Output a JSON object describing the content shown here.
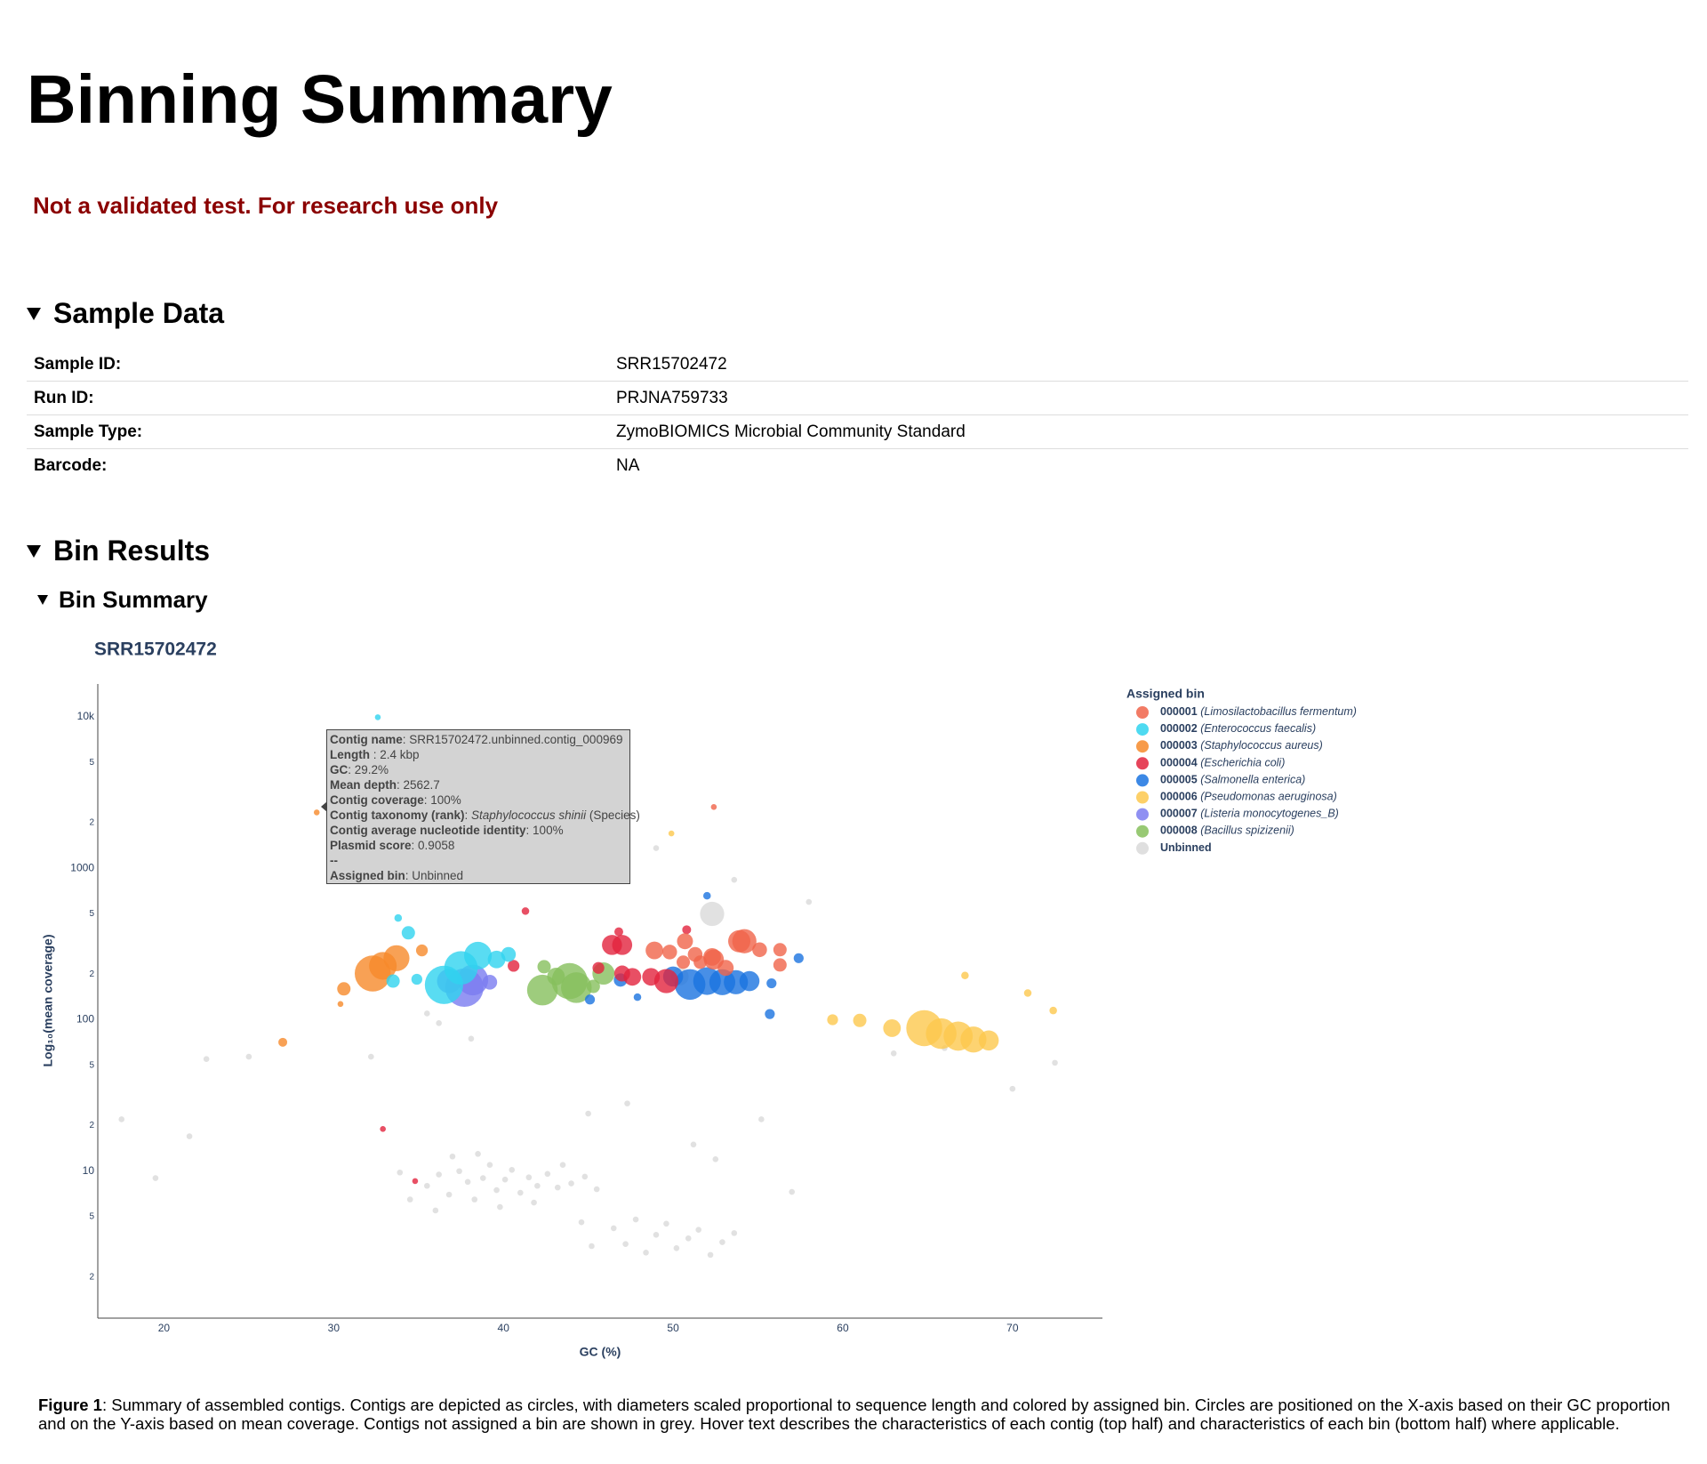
{
  "header": {
    "title": "Binning Summary",
    "notice": "Not a validated test. For research use only"
  },
  "sample_data": {
    "title": "Sample Data",
    "rows": [
      [
        "Sample ID:",
        "SRR15702472"
      ],
      [
        "Run ID:",
        "PRJNA759733"
      ],
      [
        "Sample Type:",
        "ZymoBIOMICS Microbial Community Standard"
      ],
      [
        "Barcode:",
        "NA"
      ]
    ]
  },
  "bin_results": {
    "title": "Bin Results",
    "bin_summary": {
      "title": "Bin Summary"
    }
  },
  "chart_data": {
    "type": "scatter",
    "title": "SRR15702472",
    "x_label": "GC (%)",
    "y_label": "Log₁₀(mean coverage)",
    "legend_title": "Assigned bin",
    "legend": "right",
    "log_y": true,
    "xlim": [
      16.1,
      75.3
    ],
    "xticks": [
      20,
      30,
      40,
      50,
      60,
      70
    ],
    "ylim": [
      1.07,
      16500
    ],
    "yticks": [
      2,
      5,
      10,
      {
        "value": 20,
        "label": "2"
      },
      {
        "value": 50,
        "label": "5"
      },
      100,
      {
        "value": 200,
        "label": "2"
      },
      {
        "value": 500,
        "label": "5"
      },
      1000,
      {
        "value": 2000,
        "label": "2"
      },
      {
        "value": 5000,
        "label": "5"
      },
      {
        "value": 10000,
        "label": "10k"
      }
    ],
    "series": [
      {
        "name": "000001",
        "taxon": "(Limosilactobacillus fermentum)",
        "color": "#f0644a",
        "x": [
          48.9,
          49.8,
          50.7,
          51.6,
          52.4,
          53.1,
          53.9,
          54.2,
          55.1,
          56.3,
          56.3,
          52.3,
          51.3,
          50.6,
          52.4
        ],
        "values": [
          287,
          280,
          330,
          240,
          250,
          220,
          330,
          330,
          290,
          290,
          230,
          260,
          270,
          240,
          2540
        ],
        "sizes": [
          15,
          10,
          12,
          8,
          20,
          12,
          25,
          30,
          10,
          8,
          8,
          15,
          10,
          8,
          1
        ]
      },
      {
        "name": "000002",
        "taxon": "(Enterococcus faecalis)",
        "color": "#2fd3ef",
        "x": [
          32.6,
          34.4,
          38.5,
          39.6,
          40.3,
          37.5,
          36.5,
          33.5,
          34.9,
          33.8
        ],
        "values": [
          9950,
          375,
          265,
          250,
          270,
          220,
          170,
          180,
          185,
          470
        ],
        "sizes": [
          1,
          8,
          40,
          15,
          10,
          60,
          80,
          8,
          5,
          2
        ]
      },
      {
        "name": "000003",
        "taxon": "(Staphylococcus aureus)",
        "color": "#f6892a",
        "x": [
          29.0,
          32.3,
          32.9,
          33.7,
          30.6,
          35.2,
          27.0,
          30.4
        ],
        "values": [
          2340,
          202,
          227,
          255,
          160,
          287,
          71,
          127
        ],
        "sizes": [
          1,
          70,
          40,
          35,
          8,
          6,
          3,
          1
        ]
      },
      {
        "name": "000004",
        "taxon": "(Escherichia coli)",
        "color": "#e2233d",
        "x": [
          46.4,
          47.0,
          47.6,
          49.6,
          48.7,
          45.6,
          47.0,
          41.3,
          40.6,
          32.9,
          34.8,
          50.8,
          46.8
        ],
        "values": [
          312,
          312,
          192,
          180,
          192,
          220,
          202,
          522,
          227,
          19,
          8.6,
          393,
          381
        ],
        "sizes": [
          20,
          20,
          15,
          30,
          15,
          6,
          12,
          2,
          6,
          1,
          1,
          3,
          3
        ]
      },
      {
        "name": "000005",
        "taxon": "(Salmonella enterica)",
        "color": "#1a73e0",
        "x": [
          51.0,
          52.0,
          52.9,
          53.7,
          54.5,
          50.0,
          57.4,
          55.7,
          52.0,
          45.1,
          47.9,
          46.9,
          55.8
        ],
        "values": [
          171,
          180,
          177,
          177,
          180,
          193,
          255,
          109,
          659,
          136,
          141,
          183,
          174
        ],
        "sizes": [
          50,
          40,
          35,
          30,
          20,
          20,
          4,
          4,
          2,
          4,
          2,
          8,
          4
        ]
      },
      {
        "name": "000006",
        "taxon": "(Pseudomonas aeruginosa)",
        "color": "#fdc84e",
        "x": [
          64.8,
          65.8,
          66.8,
          67.7,
          68.6,
          62.9,
          61.0,
          59.4,
          67.2,
          70.9,
          72.4,
          49.9
        ],
        "values": [
          88,
          81,
          78,
          74,
          73,
          88,
          99,
          100,
          196,
          150,
          115,
          1700
        ],
        "sizes": [
          70,
          50,
          45,
          35,
          20,
          15,
          8,
          5,
          2,
          2,
          2,
          1
        ]
      },
      {
        "name": "000007",
        "taxon": "(Listeria monocytogenes_B)",
        "color": "#7b7cf0",
        "x": [
          37.7,
          38.2,
          36.8,
          39.2
        ],
        "values": [
          163,
          183,
          180,
          177
        ],
        "sizes": [
          80,
          50,
          30,
          10
        ]
      },
      {
        "name": "000008",
        "taxon": "(Bacillus spizizenii)",
        "color": "#86bf5c",
        "x": [
          42.3,
          43.9,
          44.3,
          45.9,
          42.4,
          43.1,
          45.3
        ],
        "values": [
          157,
          180,
          163,
          202,
          224,
          193,
          166
        ],
        "sizes": [
          50,
          70,
          50,
          25,
          8,
          15,
          8
        ]
      },
      {
        "name": "Unbinned",
        "color": "#d9d9d9",
        "x": [
          35.5,
          36.2,
          36.8,
          37.4,
          37.9,
          38.3,
          38.8,
          39.2,
          39.6,
          40.1,
          40.5,
          41.0,
          41.5,
          42.0,
          42.6,
          43.2,
          44.0,
          44.8,
          45.5,
          34.5,
          33.9,
          37.0,
          38.5,
          39.8,
          41.8,
          36.0,
          43.5,
          46.5,
          47.2,
          47.8,
          48.4,
          49.0,
          49.6,
          50.2,
          50.9,
          51.5,
          52.2,
          52.9,
          53.6,
          45.2,
          44.6,
          17.5,
          19.5,
          21.5,
          22.5,
          25.0,
          32.2,
          35.5,
          36.2,
          38.1,
          45.0,
          47.3,
          51.2,
          52.5,
          55.2,
          57.0,
          63.0,
          66.0,
          70.0,
          72.5,
          58.0,
          53.6,
          49.0,
          52.3,
          50.4
        ],
        "values": [
          8,
          9.5,
          7,
          10,
          8.5,
          6.5,
          9,
          11,
          7.5,
          8.8,
          10.2,
          7.2,
          9.1,
          8,
          9.6,
          7.8,
          8.3,
          9.2,
          7.6,
          6.5,
          9.8,
          12.5,
          13,
          5.8,
          6.2,
          5.5,
          11,
          4.2,
          3.3,
          4.8,
          2.9,
          3.8,
          4.5,
          3.1,
          3.6,
          4.1,
          2.8,
          3.4,
          3.9,
          3.2,
          4.6,
          22,
          9,
          17,
          55,
          57,
          57,
          110,
          95,
          75,
          24,
          28,
          15,
          12,
          22,
          7.3,
          60,
          65,
          35,
          52,
          600,
          840,
          1360,
          500,
          193
        ],
        "sizes": [
          1,
          1,
          1,
          1,
          1,
          1,
          1,
          1,
          1,
          1,
          1,
          1,
          1,
          1,
          1,
          1,
          1,
          1,
          1,
          1,
          1,
          1,
          1,
          1,
          1,
          1,
          1,
          1,
          1,
          1,
          1,
          1,
          1,
          1,
          1,
          1,
          1,
          1,
          1,
          1,
          1,
          1,
          1,
          1,
          1,
          1,
          1,
          1,
          1,
          1,
          1,
          1,
          1,
          1,
          1,
          1,
          1,
          1,
          1,
          1,
          1,
          1,
          1,
          30,
          15
        ]
      }
    ],
    "tooltip": [
      {
        "label": "Contig name",
        "text": ": SRR15702472.unbinned.contig_000969"
      },
      {
        "label": "Length",
        "text": " : 2.4 kbp"
      },
      {
        "label": "GC",
        "text": ": 29.2%"
      },
      {
        "label": "Mean depth",
        "text": ": 2562.7"
      },
      {
        "label": "Contig coverage",
        "text": ": 100%"
      },
      {
        "label": "Contig taxonomy (rank)",
        "text": ": ",
        "italic": "Staphylococcus shinii",
        "after": " (Species)"
      },
      {
        "label": "Contig average nucleotide identity",
        "text": ": 100%"
      },
      {
        "label": "Plasmid score",
        "text": ": 0.9058"
      },
      {
        "label": "--"
      },
      {
        "label": "Assigned bin",
        "text": ": Unbinned"
      }
    ]
  },
  "caption": {
    "label": "Figure 1",
    "text": ": Summary of assembled contigs. Contigs are depicted as circles, with diameters scaled proportional to sequence length and colored by assigned bin. Circles are positioned on the X-axis based on their GC proportion and on the Y-axis based on mean coverage. Contigs not assigned a bin are shown in grey. Hover text describes the characteristics of each contig (top half) and characteristics of each bin (bottom half) where applicable."
  }
}
